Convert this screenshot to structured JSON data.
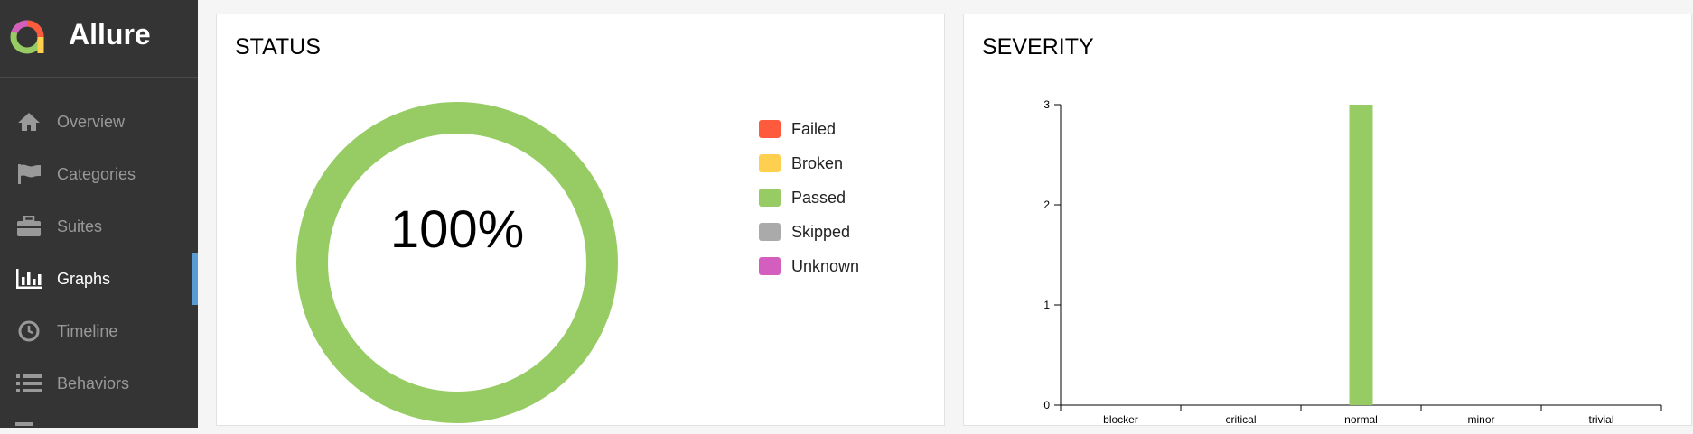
{
  "app": {
    "name": "Allure"
  },
  "sidebar": {
    "items": [
      {
        "label": "Overview",
        "icon": "home-icon"
      },
      {
        "label": "Categories",
        "icon": "flag-icon"
      },
      {
        "label": "Suites",
        "icon": "briefcase-icon"
      },
      {
        "label": "Graphs",
        "icon": "bar-chart-icon",
        "active": true
      },
      {
        "label": "Timeline",
        "icon": "clock-icon"
      },
      {
        "label": "Behaviors",
        "icon": "list-icon"
      }
    ]
  },
  "status_panel": {
    "title": "STATUS",
    "center_label": "100%",
    "legend": [
      {
        "label": "Failed",
        "color": "#fd5a3e"
      },
      {
        "label": "Broken",
        "color": "#ffd050"
      },
      {
        "label": "Passed",
        "color": "#97cc64"
      },
      {
        "label": "Skipped",
        "color": "#aaaaaa"
      },
      {
        "label": "Unknown",
        "color": "#d35ebe"
      }
    ]
  },
  "severity_panel": {
    "title": "SEVERITY"
  },
  "chart_data": [
    {
      "type": "pie",
      "categories": [
        "Failed",
        "Broken",
        "Passed",
        "Skipped",
        "Unknown"
      ],
      "values": [
        0,
        0,
        3,
        0,
        0
      ],
      "colors": [
        "#fd5a3e",
        "#ffd050",
        "#97cc64",
        "#aaaaaa",
        "#d35ebe"
      ],
      "center_label": "100%"
    },
    {
      "type": "bar",
      "title": "SEVERITY",
      "categories": [
        "blocker",
        "critical",
        "normal",
        "minor",
        "trivial"
      ],
      "values": [
        0,
        0,
        3,
        0,
        0
      ],
      "yticks": [
        0,
        1,
        2,
        3
      ],
      "ylim": [
        0,
        3
      ],
      "bar_color": "#97cc64"
    }
  ]
}
